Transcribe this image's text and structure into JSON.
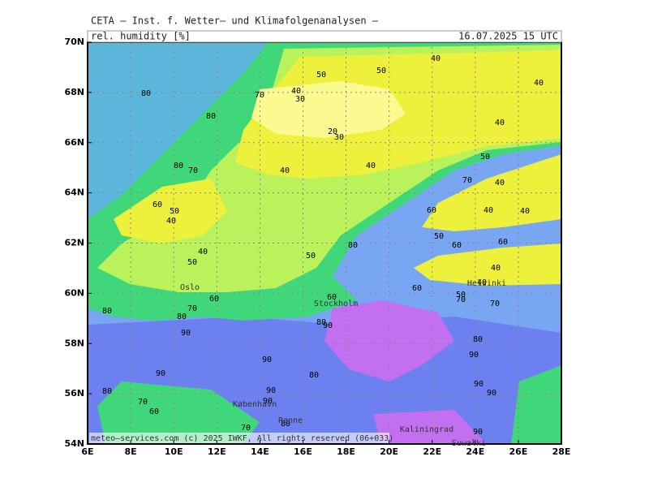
{
  "header": {
    "title": "CETA — Inst. f. Wetter— und Klimafolgenanalysen —",
    "field": "rel. humidity [%]",
    "valid_time": "16.07.2025 15 UTC"
  },
  "map": {
    "lon_lim": [
      6,
      28
    ],
    "lat_lim": [
      54,
      70
    ],
    "lon_ticks": [
      {
        "value": 6,
        "label": "6E"
      },
      {
        "value": 8,
        "label": "8E"
      },
      {
        "value": 10,
        "label": "10E"
      },
      {
        "value": 12,
        "label": "12E"
      },
      {
        "value": 14,
        "label": "14E"
      },
      {
        "value": 16,
        "label": "16E"
      },
      {
        "value": 18,
        "label": "18E"
      },
      {
        "value": 20,
        "label": "20E"
      },
      {
        "value": 22,
        "label": "22E"
      },
      {
        "value": 24,
        "label": "24E"
      },
      {
        "value": 26,
        "label": "26E"
      },
      {
        "value": 28,
        "label": "28E"
      }
    ],
    "lat_ticks": [
      {
        "value": 54,
        "label": "54N"
      },
      {
        "value": 56,
        "label": "56N"
      },
      {
        "value": 58,
        "label": "58N"
      },
      {
        "value": 60,
        "label": "60N"
      },
      {
        "value": 62,
        "label": "62N"
      },
      {
        "value": 64,
        "label": "64N"
      },
      {
        "value": 66,
        "label": "66N"
      },
      {
        "value": 68,
        "label": "68N"
      },
      {
        "value": 70,
        "label": "70N"
      }
    ],
    "contour_labels": [
      80,
      80,
      70,
      40,
      30,
      50,
      50,
      40,
      40,
      40,
      20,
      30,
      50,
      40,
      70,
      40,
      40,
      80,
      70,
      60,
      50,
      40,
      40,
      50,
      50,
      80,
      60,
      40,
      40,
      50,
      60,
      60,
      40,
      40,
      60,
      50,
      70,
      70,
      60,
      60,
      70,
      80,
      80,
      90,
      80,
      90,
      80,
      90,
      90,
      90,
      80,
      90,
      90,
      80,
      90,
      70,
      90,
      60,
      80,
      70,
      90
    ],
    "cities": [
      "Oslo",
      "Stockholm",
      "Helsinki",
      "København",
      "Rønne",
      "Kaliningrad",
      "Suwałki"
    ]
  },
  "footer": {
    "copyright": "meteo—services.com (c) 2025 IWKF, All rights reserved (06+033)"
  }
}
